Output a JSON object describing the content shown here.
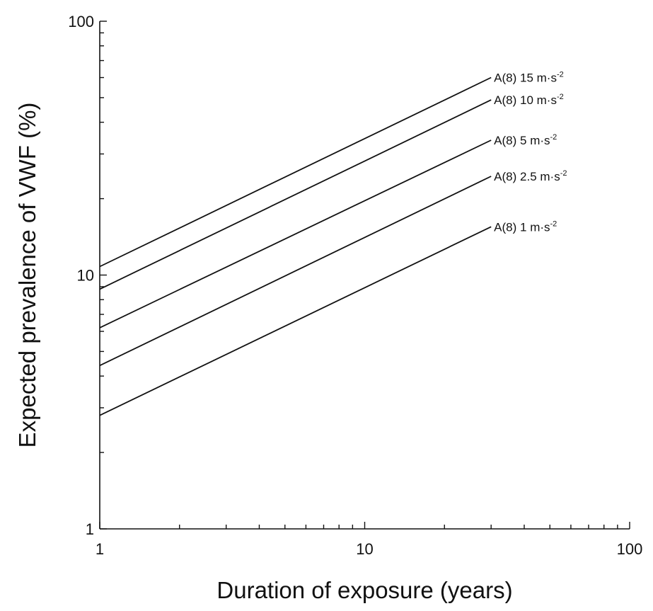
{
  "chart_data": {
    "type": "line",
    "xlabel": "Duration of exposure (years)",
    "ylabel": "Expected prevalence of VWF (%)",
    "x_scale": "log",
    "y_scale": "log",
    "xlim": [
      1,
      100
    ],
    "ylim": [
      1,
      100
    ],
    "x_ticks": [
      {
        "value": 1,
        "label": "1"
      },
      {
        "value": 10,
        "label": "10"
      },
      {
        "value": 100,
        "label": "100"
      }
    ],
    "y_ticks": [
      {
        "value": 1,
        "label": "1"
      },
      {
        "value": 10,
        "label": "10"
      },
      {
        "value": 100,
        "label": "100"
      }
    ],
    "grid": false,
    "legend": "labels at line ends",
    "series": [
      {
        "name": "A(8) 15 m·s-2",
        "label_main": "A(8) 15 m·s",
        "label_sup": "-2",
        "x": [
          1,
          30
        ],
        "y": [
          10.8,
          60
        ]
      },
      {
        "name": "A(8) 10 m·s-2",
        "label_main": "A(8) 10 m·s",
        "label_sup": "-2",
        "x": [
          1,
          30
        ],
        "y": [
          8.8,
          49
        ]
      },
      {
        "name": "A(8) 5 m·s-2",
        "label_main": "A(8) 5 m·s",
        "label_sup": "-2",
        "x": [
          1,
          30
        ],
        "y": [
          6.2,
          34
        ]
      },
      {
        "name": "A(8) 2.5 m·s-2",
        "label_main": "A(8) 2.5 m·s",
        "label_sup": "-2",
        "x": [
          1,
          30
        ],
        "y": [
          4.4,
          24.5
        ]
      },
      {
        "name": "A(8) 1 m·s-2",
        "label_main": "A(8) 1 m·s",
        "label_sup": "-2",
        "x": [
          1,
          30
        ],
        "y": [
          2.8,
          15.5
        ]
      }
    ]
  }
}
